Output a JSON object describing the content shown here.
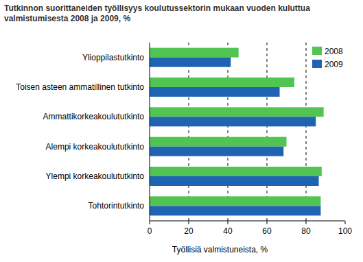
{
  "chart_data": {
    "type": "bar",
    "orientation": "horizontal",
    "title": "Tutkinnon suorittaneiden työllisyys koulutussektorin mukaan vuoden kuluttua valmistumisesta 2008 ja 2009, %",
    "x_label": "Työllisiä valmistuneista, %",
    "categories": [
      "Ylioppilastutkinto",
      "Toisen asteen ammatillinen tutkinto",
      "Ammattikorkeakoulututkinto",
      "Alempi korkeakoulututkinto",
      "Ylempi korkeakoulututkinto",
      "Tohtorintutkinto"
    ],
    "series": [
      {
        "name": "2008",
        "color": "#52c452",
        "values": [
          45.5,
          74,
          89,
          70,
          88,
          87.5
        ]
      },
      {
        "name": "2009",
        "color": "#1f63b3",
        "values": [
          41.5,
          66.5,
          85,
          68.5,
          86.5,
          87.5
        ]
      }
    ],
    "xlim": [
      0,
      100
    ],
    "xticks": [
      0,
      20,
      40,
      60,
      80,
      100
    ],
    "grid": true,
    "legend": "top-right"
  }
}
